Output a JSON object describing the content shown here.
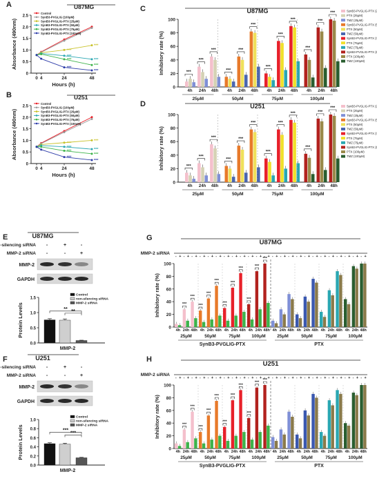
{
  "common": {
    "xlabel_hours": "Hours (h)",
    "ylabel_abs": "Absorbance (490nm)",
    "ylabel_inh": "Inhibitory rate (%)",
    "ylabel_prot": "Protein Levels",
    "cell_u87": "U87MG",
    "cell_u251": "U251",
    "concentrations": [
      "25μM",
      "50μM",
      "75μM",
      "100μM"
    ],
    "timepoints": [
      "4h",
      "24h",
      "48h"
    ],
    "sig": "***",
    "sig2": "**",
    "sig1": "*",
    "mmp2_sirna": "MMP-2 siRNA",
    "non_silencing": "non-silencing siRNA",
    "group_peptide": "SynB3-PVGLIG-PTX",
    "group_ptx": "PTX",
    "blot_mmp2": "MMP-2",
    "blot_gapdh": "GAPDH",
    "xcat_mmp2": "MMP-2"
  },
  "panels": [
    {
      "letter": "A",
      "type": "line"
    },
    {
      "letter": "B",
      "type": "line"
    },
    {
      "letter": "C",
      "type": "bar"
    },
    {
      "letter": "D",
      "type": "bar"
    },
    {
      "letter": "E",
      "type": "western-bar"
    },
    {
      "letter": "F",
      "type": "western-bar"
    },
    {
      "letter": "G",
      "type": "bar"
    },
    {
      "letter": "H",
      "type": "bar"
    }
  ],
  "chart_data": [
    {
      "id": "A",
      "type": "line",
      "title": "U87MG",
      "x": [
        0,
        4,
        24,
        48
      ],
      "xticks": [
        0,
        4,
        24,
        48
      ],
      "ylim": [
        0,
        2.5
      ],
      "yticks": [
        0,
        0.5,
        1,
        1.5,
        2,
        2.5
      ],
      "series": [
        {
          "name": "Control",
          "color": "#e8212a",
          "values": [
            0.78,
            0.92,
            1.45,
            2.0
          ]
        },
        {
          "name": "SynB3-PVGLIG (100μM)",
          "color": "#9a9a9a",
          "values": [
            0.78,
            0.9,
            1.4,
            1.95
          ]
        },
        {
          "name": "SynB3-PVGLIG-PTX (25μM)",
          "color": "#c8c22a",
          "values": [
            0.78,
            0.88,
            1.0,
            1.2
          ]
        },
        {
          "name": "SynB3-PVGLIG-PTX (50μM)",
          "color": "#2aa7b2",
          "values": [
            0.78,
            0.85,
            0.75,
            0.6
          ]
        },
        {
          "name": "SynB3-PVGLIG-PTX (75μM)",
          "color": "#3db34a",
          "values": [
            0.78,
            0.82,
            0.6,
            0.35
          ]
        },
        {
          "name": "SynB3-PVGLIG-PTX (100μM)",
          "color": "#2b3aa8",
          "values": [
            0.78,
            0.62,
            0.25,
            0.12
          ]
        }
      ]
    },
    {
      "id": "B",
      "type": "line",
      "title": "U251",
      "x": [
        0,
        4,
        24,
        48
      ],
      "xticks": [
        0,
        4,
        24,
        48
      ],
      "ylim": [
        0,
        2.5
      ],
      "yticks": [
        0,
        0.5,
        1,
        1.5,
        2,
        2.5
      ],
      "series": [
        {
          "name": "Control",
          "color": "#e8212a",
          "values": [
            0.72,
            0.88,
            1.4,
            2.0
          ]
        },
        {
          "name": "SynB3-PVGLIG (100μM)",
          "color": "#9a9a9a",
          "values": [
            0.72,
            0.86,
            1.35,
            1.92
          ]
        },
        {
          "name": "SynB3-PVGLIG-PTX (25μM)",
          "color": "#c8c22a",
          "values": [
            0.72,
            0.82,
            0.9,
            1.0
          ]
        },
        {
          "name": "SynB3-PVGLIG-PTX (50μM)",
          "color": "#2aa7b2",
          "values": [
            0.72,
            0.78,
            0.72,
            0.62
          ]
        },
        {
          "name": "SynB3-PVGLIG-PTX (75μM)",
          "color": "#3db34a",
          "values": [
            0.72,
            0.72,
            0.55,
            0.42
          ]
        },
        {
          "name": "SynB3-PVGLIG-PTX (100μM)",
          "color": "#2b3aa8",
          "values": [
            0.72,
            0.6,
            0.28,
            0.15
          ]
        }
      ]
    },
    {
      "id": "C",
      "type": "bar",
      "title": "U87MG",
      "ylim": [
        0,
        100
      ],
      "yticks": [
        0,
        20,
        40,
        60,
        80,
        100
      ],
      "legend": [
        "SynB3-PVGLIG-PTX (25μM)",
        "PTX (25μM)",
        "TMZ (25μM)",
        "SynB3-PVGLIG-PTX (50μM)",
        "PTX (50μM)",
        "TMZ (50μM)",
        "SynB3-PVGLIG-PTX (75μM)",
        "PTX (75μM)",
        "TMZ (75μM)",
        "SynB3-PVGLIG-PTX (100μM)",
        "PTX (100μM)",
        "TMZ (100μM)"
      ],
      "colors": [
        [
          "#f4c0cc",
          "#d5d2b4",
          "#7f8fd6"
        ],
        [
          "#e87a2a",
          "#efe05a",
          "#4a66b0"
        ],
        [
          "#e8212a",
          "#f0e02a",
          "#2aa7b2"
        ],
        [
          "#b2221e",
          "#9a8a4a",
          "#2a5e30"
        ]
      ],
      "values": [
        [
          [
            8,
            12,
            7
          ],
          [
            30,
            22,
            12
          ],
          [
            45,
            40,
            15
          ]
        ],
        [
          [
            15,
            12,
            8
          ],
          [
            45,
            40,
            18
          ],
          [
            82,
            80,
            30
          ]
        ],
        [
          [
            20,
            15,
            10
          ],
          [
            68,
            65,
            25
          ],
          [
            90,
            88,
            38
          ]
        ],
        [
          [
            48,
            40,
            14
          ],
          [
            88,
            82,
            28
          ],
          [
            100,
            98,
            38
          ]
        ]
      ]
    },
    {
      "id": "D",
      "type": "bar",
      "title": "U251",
      "ylim": [
        0,
        100
      ],
      "yticks": [
        0,
        20,
        40,
        60,
        80,
        100
      ],
      "legend": [
        "SynB3-PVGLIG-PTX (25μM)",
        "PTX (25μM)",
        "TMZ (25μM)",
        "SynB3-PVGLIG-PTX (50μM)",
        "PTX (50μM)",
        "TMZ (50μM)",
        "SynB3-PVGLIG-PTX (75μM)",
        "PTX (75μM)",
        "TMZ (75μM)",
        "SynB3-PVGLIG-PTX (100μM)",
        "PTX (100μM)",
        "TMZ (100μM)"
      ],
      "colors": [
        [
          "#f4c0cc",
          "#d5d2b4",
          "#7f8fd6"
        ],
        [
          "#e87a2a",
          "#efe05a",
          "#4a66b0"
        ],
        [
          "#e8212a",
          "#f0e02a",
          "#2aa7b2"
        ],
        [
          "#b2221e",
          "#9a8a4a",
          "#2a5e30"
        ]
      ],
      "values": [
        [
          [
            14,
            10,
            5
          ],
          [
            28,
            22,
            10
          ],
          [
            56,
            50,
            12
          ]
        ],
        [
          [
            24,
            20,
            8
          ],
          [
            54,
            48,
            14
          ],
          [
            78,
            74,
            22
          ]
        ],
        [
          [
            35,
            30,
            10
          ],
          [
            78,
            70,
            20
          ],
          [
            92,
            88,
            28
          ]
        ],
        [
          [
            42,
            36,
            12
          ],
          [
            94,
            90,
            18
          ],
          [
            100,
            98,
            35
          ]
        ]
      ]
    },
    {
      "id": "E",
      "type": "bar",
      "title": "U87MG",
      "ylim": [
        0,
        1.5
      ],
      "yticks": [
        0,
        0.5,
        1,
        1.5
      ],
      "legend": [
        "Control",
        "non-silencing siRNA",
        "MMP-2 siRNA"
      ],
      "colors": [
        "#111111",
        "#cfcfcf",
        "#555555"
      ],
      "values": [
        0.76,
        0.75,
        0.08
      ],
      "errors": [
        0.04,
        0.04,
        0.01
      ],
      "lane_signs": {
        "nonsil": [
          "-",
          "+",
          "-"
        ],
        "mmp2": [
          "-",
          "-",
          "+"
        ]
      }
    },
    {
      "id": "F",
      "type": "bar",
      "title": "U251",
      "ylim": [
        0,
        1.0
      ],
      "yticks": [
        0,
        0.2,
        0.4,
        0.6,
        0.8,
        1.0
      ],
      "legend": [
        "Control",
        "non-silencing siRNA",
        "MMP-2 siRNA"
      ],
      "colors": [
        "#111111",
        "#cfcfcf",
        "#555555"
      ],
      "values": [
        0.47,
        0.46,
        0.16
      ],
      "errors": [
        0.02,
        0.02,
        0.01
      ],
      "lane_signs": {
        "nonsil": [
          "-",
          "+",
          "-"
        ],
        "mmp2": [
          "-",
          "-",
          "+"
        ]
      }
    },
    {
      "id": "G",
      "type": "bar",
      "title": "U87MG",
      "ylim": [
        0,
        100
      ],
      "yticks": [
        0,
        20,
        40,
        60,
        80,
        100
      ],
      "sirna_signs": [
        "-",
        "+",
        "-",
        "+",
        "-",
        "+",
        "-",
        "+",
        "-",
        "+",
        "-",
        "+",
        "-",
        "+",
        "-",
        "+",
        "-",
        "+",
        "-",
        "+",
        "-",
        "+",
        "-",
        "+"
      ],
      "colors_peptide": [
        "#f4c0cc",
        "#e87a2a",
        "#e8212a",
        "#b2221e"
      ],
      "colors_ptx": [
        "#7f8fd6",
        "#3a58b0",
        "#2aa7b2",
        "#2a5e30"
      ],
      "peptide_values": [
        [
          [
            5,
            3
          ],
          [
            28,
            10
          ],
          [
            40,
            14
          ]
        ],
        [
          [
            26,
            8
          ],
          [
            45,
            12
          ],
          [
            65,
            18
          ]
        ],
        [
          [
            30,
            10
          ],
          [
            62,
            18
          ],
          [
            85,
            24
          ]
        ],
        [
          [
            36,
            12
          ],
          [
            88,
            28
          ],
          [
            100,
            38
          ]
        ]
      ],
      "ptx_values": [
        [
          [
            10,
            6
          ],
          [
            28,
            20
          ],
          [
            52,
            44
          ]
        ],
        [
          [
            20,
            14
          ],
          [
            48,
            40
          ],
          [
            76,
            70
          ]
        ],
        [
          [
            24,
            16
          ],
          [
            58,
            50
          ],
          [
            88,
            82
          ]
        ],
        [
          [
            44,
            36
          ],
          [
            96,
            92
          ],
          [
            100,
            100
          ]
        ]
      ]
    },
    {
      "id": "H",
      "type": "bar",
      "title": "U251",
      "ylim": [
        0,
        100
      ],
      "yticks": [
        0,
        20,
        40,
        60,
        80,
        100
      ],
      "sirna_signs": [
        "-",
        "+",
        "-",
        "+",
        "-",
        "+",
        "-",
        "+",
        "-",
        "+",
        "-",
        "+",
        "-",
        "+",
        "-",
        "+",
        "-",
        "+",
        "-",
        "+",
        "-",
        "+",
        "-",
        "+"
      ],
      "colors_peptide": [
        "#f4c0cc",
        "#e87a2a",
        "#e8212a",
        "#b2221e"
      ],
      "colors_ptx": [
        "#7f8fd6",
        "#3a58b0",
        "#2aa7b2",
        "#2a5e30"
      ],
      "peptide_values": [
        [
          [
            8,
            4
          ],
          [
            30,
            10
          ],
          [
            58,
            16
          ]
        ],
        [
          [
            26,
            8
          ],
          [
            52,
            14
          ],
          [
            75,
            20
          ]
        ],
        [
          [
            34,
            12
          ],
          [
            76,
            20
          ],
          [
            92,
            26
          ]
        ],
        [
          [
            48,
            14
          ],
          [
            96,
            26
          ],
          [
            100,
            36
          ]
        ]
      ],
      "ptx_values": [
        [
          [
            18,
            12
          ],
          [
            30,
            22
          ],
          [
            58,
            50
          ]
        ],
        [
          [
            22,
            16
          ],
          [
            60,
            52
          ],
          [
            86,
            80
          ]
        ],
        [
          [
            26,
            20
          ],
          [
            76,
            68
          ],
          [
            92,
            86
          ]
        ],
        [
          [
            40,
            36
          ],
          [
            88,
            84
          ],
          [
            100,
            100
          ]
        ]
      ]
    }
  ]
}
